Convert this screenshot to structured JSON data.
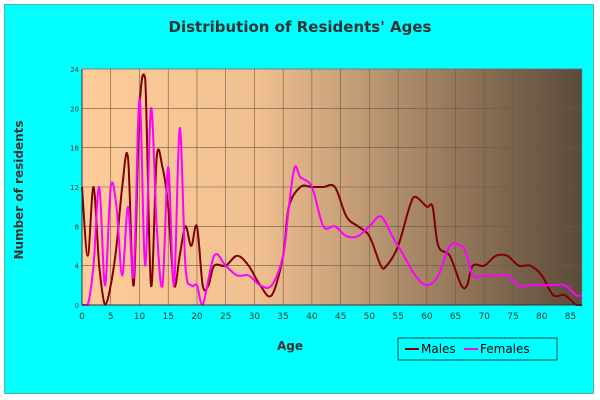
{
  "chart_data": {
    "type": "line",
    "title": "Distribution of Residents' Ages",
    "xlabel": "Age",
    "ylabel": "Number of residents",
    "xlim": [
      0,
      87
    ],
    "ylim": [
      0,
      24
    ],
    "x_ticks": [
      "0",
      "5",
      "10",
      "15",
      "20",
      "25",
      "30",
      "35",
      "40",
      "45",
      "50",
      "55",
      "60",
      "65",
      "70",
      "75",
      "80",
      "85"
    ],
    "y_ticks": [
      "0",
      "4",
      "8",
      "12",
      "16",
      "20",
      "24"
    ],
    "grid": true,
    "legend": "bottom-right",
    "plot_background": [
      "#ffcc99",
      "#5a4a3a"
    ],
    "series": [
      {
        "name": "Males",
        "color": "#800000",
        "x": [
          0,
          1,
          2,
          3,
          4,
          5,
          6,
          7,
          8,
          9,
          10,
          11,
          12,
          13,
          14,
          15,
          16,
          17,
          18,
          19,
          20,
          21,
          22,
          23,
          25,
          27,
          29,
          31,
          33,
          35,
          36,
          38,
          40,
          42,
          44,
          46,
          48,
          50,
          52,
          53,
          55,
          57,
          58,
          60,
          61,
          62,
          64,
          66,
          67,
          68,
          70,
          72,
          74,
          76,
          78,
          80,
          82,
          84,
          86,
          87
        ],
        "values": [
          12,
          5,
          12,
          4,
          0,
          2,
          6,
          12,
          15,
          2,
          20,
          23,
          2,
          15,
          14,
          10,
          2,
          5,
          8,
          6,
          8,
          2,
          2,
          4,
          4,
          5,
          4,
          2,
          1,
          5,
          10,
          12,
          12,
          12,
          12,
          9,
          8,
          7,
          4,
          4,
          6,
          10,
          11,
          10,
          10,
          6,
          5,
          2,
          2,
          4,
          4,
          5,
          5,
          4,
          4,
          3,
          1,
          1,
          0,
          0
        ]
      },
      {
        "name": "Females",
        "color": "#ff00ff",
        "x": [
          0,
          1,
          2,
          3,
          4,
          5,
          6,
          7,
          8,
          9,
          10,
          11,
          12,
          13,
          14,
          15,
          16,
          17,
          18,
          19,
          20,
          21,
          23,
          25,
          27,
          29,
          31,
          33,
          35,
          36,
          37,
          38,
          40,
          42,
          44,
          46,
          48,
          50,
          52,
          54,
          56,
          58,
          60,
          62,
          64,
          66,
          67,
          68,
          70,
          72,
          74,
          76,
          78,
          80,
          82,
          84,
          86,
          87
        ],
        "values": [
          0,
          0,
          4,
          12,
          2,
          12,
          10,
          3,
          10,
          3,
          21,
          4,
          20,
          8,
          2,
          14,
          2,
          18,
          4,
          2,
          2,
          0,
          5,
          4,
          3,
          3,
          2,
          2,
          5,
          10,
          14,
          13,
          12,
          8,
          8,
          7,
          7,
          8,
          9,
          7,
          5,
          3,
          2,
          3,
          6,
          6,
          5,
          3,
          3,
          3,
          3,
          2,
          2,
          2,
          2,
          2,
          1,
          1
        ]
      }
    ]
  }
}
